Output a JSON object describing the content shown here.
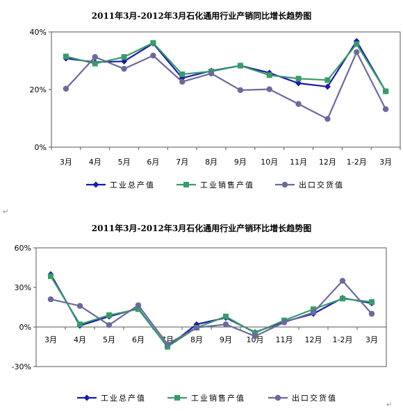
{
  "chart_data": [
    {
      "type": "line",
      "title": "2011年3月-2012年3月石化通用行业产销同比增长趋势图",
      "categories": [
        "3月",
        "4月",
        "5月",
        "6月",
        "7月",
        "8月",
        "9月",
        "10月",
        "11月",
        "12月",
        "1-2月",
        "3月"
      ],
      "y_ticks": [
        "0%",
        "20%",
        "40%"
      ],
      "ylim": [
        0,
        40
      ],
      "grid": false,
      "legend_position": "bottom",
      "series": [
        {
          "name": "工业总产值",
          "color": "#1a1aa6",
          "marker": "diamond",
          "values": [
            30.8,
            29.5,
            29.8,
            36.0,
            24.0,
            26.5,
            28.3,
            25.8,
            22.2,
            21.0,
            36.8,
            19.4
          ]
        },
        {
          "name": "工业销售产值",
          "color": "#3a9a6a",
          "marker": "square",
          "values": [
            31.5,
            29.0,
            31.3,
            36.2,
            25.3,
            26.3,
            28.3,
            25.0,
            23.8,
            23.3,
            35.8,
            19.4
          ]
        },
        {
          "name": "出口交货值",
          "color": "#6a6a9a",
          "marker": "circle",
          "values": [
            20.3,
            31.3,
            27.2,
            31.8,
            22.7,
            25.6,
            19.8,
            20.1,
            15.0,
            9.8,
            33.0,
            13.2
          ]
        }
      ]
    },
    {
      "type": "line",
      "title": "2011年3月-2012年3月石化通用行业产销环比增长趋势图",
      "categories": [
        "3月",
        "4月",
        "5月",
        "6月",
        "7月",
        "8月",
        "9月",
        "10月",
        "11月",
        "12月",
        "1-2月",
        "3月"
      ],
      "y_ticks": [
        "-30%",
        "0%",
        "30%",
        "60%"
      ],
      "ylim": [
        -30,
        60
      ],
      "grid": false,
      "legend_position": "bottom",
      "series": [
        {
          "name": "工业总产值",
          "color": "#1a1aa6",
          "marker": "diamond",
          "values": [
            40.0,
            1.0,
            8.0,
            14.0,
            -15.0,
            2.0,
            7.0,
            -4.0,
            4.0,
            10.0,
            22.0,
            18.0
          ]
        },
        {
          "name": "工业销售产值",
          "color": "#3a9a6a",
          "marker": "square",
          "values": [
            38.5,
            2.0,
            9.0,
            13.5,
            -15.0,
            -0.5,
            8.0,
            -4.5,
            5.0,
            13.5,
            21.5,
            19.0
          ]
        },
        {
          "name": "出口交货值",
          "color": "#6a6a9a",
          "marker": "circle",
          "values": [
            21.0,
            16.0,
            1.5,
            16.5,
            -13.0,
            -0.5,
            2.0,
            -7.0,
            3.5,
            11.0,
            35.0,
            10.0
          ]
        }
      ]
    }
  ]
}
